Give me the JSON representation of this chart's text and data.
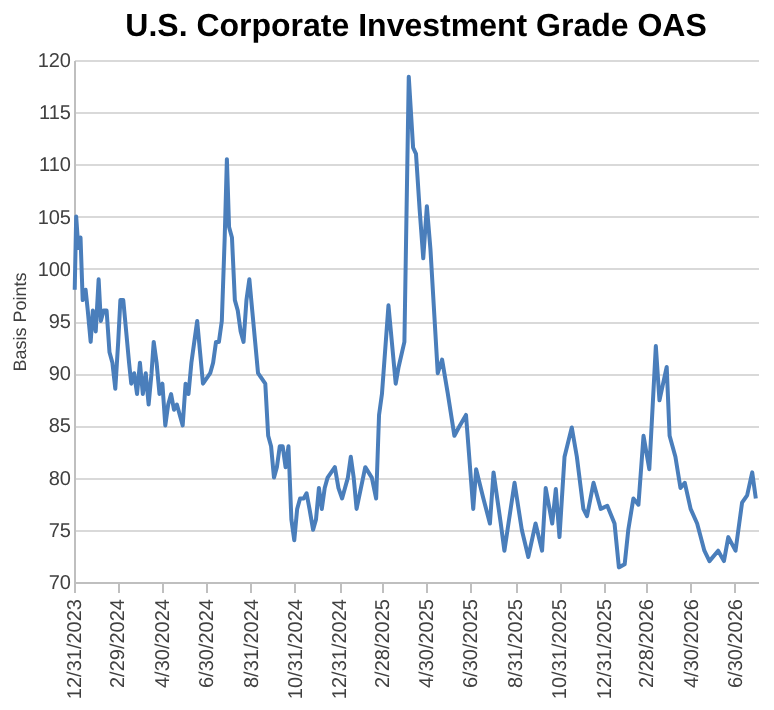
{
  "chart_data": {
    "type": "line",
    "title": "U.S. Corporate Investment Grade OAS",
    "ylabel": "Basis Points",
    "x": [
      "2024-01-01",
      "2024-01-03",
      "2024-01-06",
      "2024-01-09",
      "2024-01-12",
      "2024-01-16",
      "2024-01-19",
      "2024-01-23",
      "2024-01-26",
      "2024-01-30",
      "2024-02-03",
      "2024-02-06",
      "2024-02-10",
      "2024-02-14",
      "2024-02-18",
      "2024-02-22",
      "2024-02-26",
      "2024-03-01",
      "2024-03-04",
      "2024-03-08",
      "2024-03-12",
      "2024-03-16",
      "2024-03-19",
      "2024-03-23",
      "2024-03-27",
      "2024-03-31",
      "2024-04-04",
      "2024-04-08",
      "2024-04-12",
      "2024-04-16",
      "2024-04-19",
      "2024-04-23",
      "2024-04-27",
      "2024-05-01",
      "2024-05-05",
      "2024-05-09",
      "2024-05-13",
      "2024-05-17",
      "2024-05-21",
      "2024-05-25",
      "2024-05-29",
      "2024-06-02",
      "2024-06-06",
      "2024-06-10",
      "2024-06-14",
      "2024-06-18",
      "2024-06-22",
      "2024-06-26",
      "2024-07-01",
      "2024-07-06",
      "2024-07-10",
      "2024-07-14",
      "2024-07-18",
      "2024-07-22",
      "2024-07-26",
      "2024-07-29",
      "2024-08-01",
      "2024-08-05",
      "2024-08-09",
      "2024-08-13",
      "2024-08-17",
      "2024-08-21",
      "2024-08-25",
      "2024-08-29",
      "2024-09-02",
      "2024-09-06",
      "2024-09-10",
      "2024-09-15",
      "2024-09-20",
      "2024-09-24",
      "2024-09-28",
      "2024-10-02",
      "2024-10-06",
      "2024-10-10",
      "2024-10-14",
      "2024-10-18",
      "2024-10-22",
      "2024-10-26",
      "2024-10-30",
      "2024-11-03",
      "2024-11-07",
      "2024-11-12",
      "2024-11-16",
      "2024-11-20",
      "2024-11-25",
      "2024-11-29",
      "2024-12-03",
      "2024-12-07",
      "2024-12-11",
      "2024-12-15",
      "2024-12-20",
      "2024-12-25",
      "2024-12-30",
      "2025-01-04",
      "2025-01-08",
      "2025-01-12",
      "2025-01-16",
      "2025-01-20",
      "2025-01-24",
      "2025-02-05",
      "2025-02-14",
      "2025-02-20",
      "2025-02-24",
      "2025-02-28",
      "2025-03-09",
      "2025-03-19",
      "2025-03-23",
      "2025-03-31",
      "2025-04-06",
      "2025-04-12",
      "2025-04-16",
      "2025-04-21",
      "2025-04-26",
      "2025-05-01",
      "2025-05-06",
      "2025-05-16",
      "2025-05-22",
      "2025-05-30",
      "2025-06-08",
      "2025-06-14",
      "2025-06-24",
      "2025-07-04",
      "2025-07-08",
      "2025-07-18",
      "2025-07-27",
      "2025-08-01",
      "2025-08-11",
      "2025-08-16",
      "2025-08-30",
      "2025-09-09",
      "2025-09-18",
      "2025-09-28",
      "2025-10-07",
      "2025-10-12",
      "2025-10-21",
      "2025-10-26",
      "2025-10-31",
      "2025-11-07",
      "2025-11-17",
      "2025-11-24",
      "2025-12-03",
      "2025-12-08",
      "2025-12-17",
      "2025-12-27",
      "2026-01-05",
      "2026-01-15",
      "2026-01-21",
      "2026-01-29",
      "2026-02-03",
      "2026-02-10",
      "2026-02-17",
      "2026-02-24",
      "2026-03-04",
      "2026-03-13",
      "2026-03-18",
      "2026-03-28",
      "2026-04-01",
      "2026-04-09",
      "2026-04-16",
      "2026-04-22",
      "2026-04-30",
      "2026-05-09",
      "2026-05-19",
      "2026-05-26",
      "2026-06-07",
      "2026-06-15",
      "2026-06-21",
      "2026-07-01",
      "2026-07-10",
      "2026-07-17",
      "2026-07-24",
      "2026-07-29"
    ],
    "series": [
      {
        "color": "#4a7ebb",
        "values": [
          98,
          105,
          102,
          103,
          97,
          98,
          96,
          93,
          96,
          94,
          99,
          95,
          96,
          96,
          92,
          91,
          88.5,
          93,
          97,
          97,
          94,
          91,
          89,
          90,
          88,
          91,
          88,
          90,
          87,
          90,
          93,
          91,
          88,
          89,
          85,
          87,
          88,
          86.5,
          87,
          86,
          85,
          89,
          88,
          91,
          93,
          95,
          92,
          89,
          89.5,
          90,
          91,
          93,
          93,
          95,
          103,
          110.5,
          104,
          103,
          97,
          96,
          94,
          93,
          97,
          99,
          96,
          93,
          90,
          89.5,
          89,
          84,
          83,
          80,
          81,
          83,
          83,
          81,
          83,
          76,
          74,
          77,
          78,
          78,
          78.5,
          77,
          75,
          76,
          79,
          77,
          79,
          80,
          80.5,
          81,
          79,
          78,
          79,
          80,
          82,
          80,
          77,
          81,
          80,
          78,
          86,
          88,
          96.5,
          89,
          90.6,
          93,
          118.4,
          111.6,
          111,
          105.7,
          101,
          106,
          101.8,
          90,
          91.3,
          88,
          84,
          84.8,
          86,
          77,
          80.8,
          78,
          75.6,
          80.5,
          75.6,
          73,
          79.5,
          75,
          72.4,
          75.6,
          73,
          79,
          75.6,
          78.9,
          74.3,
          82,
          84.8,
          82,
          77,
          76.3,
          79.5,
          77,
          77.3,
          75.6,
          71.4,
          71.7,
          75,
          78,
          77.4,
          84,
          80.8,
          92.6,
          87.4,
          90.6,
          84,
          82,
          79,
          79.5,
          77,
          75.6,
          73,
          72,
          73,
          72,
          74.3,
          73,
          77.6,
          78.3,
          80.5,
          78
        ]
      }
    ],
    "xlim": [
      "2023-12-31",
      "2026-08-01"
    ],
    "xticks": [
      {
        "value": "2023-12-31",
        "label": "12/31/2023"
      },
      {
        "value": "2024-02-29",
        "label": "2/29/2024"
      },
      {
        "value": "2024-04-30",
        "label": "4/30/2024"
      },
      {
        "value": "2024-06-30",
        "label": "6/30/2024"
      },
      {
        "value": "2024-08-31",
        "label": "8/31/2024"
      },
      {
        "value": "2024-10-31",
        "label": "10/31/2024"
      },
      {
        "value": "2024-12-31",
        "label": "12/31/2024"
      },
      {
        "value": "2025-02-28",
        "label": "2/28/2025"
      },
      {
        "value": "2025-04-30",
        "label": "4/30/2025"
      },
      {
        "value": "2025-06-30",
        "label": "6/30/2025"
      },
      {
        "value": "2025-08-31",
        "label": "8/31/2025"
      },
      {
        "value": "2025-10-31",
        "label": "10/31/2025"
      },
      {
        "value": "2025-12-31",
        "label": "12/31/2025"
      },
      {
        "value": "2026-02-28",
        "label": "2/28/2026"
      },
      {
        "value": "2026-04-30",
        "label": "4/30/2026"
      },
      {
        "value": "2026-06-30",
        "label": "6/30/2026"
      }
    ],
    "ylim": [
      70,
      120
    ],
    "yticks": [
      70,
      75,
      80,
      85,
      90,
      95,
      100,
      105,
      110,
      115,
      120
    ],
    "grid": "y",
    "legend": false,
    "marker": "none",
    "line_style": "solid"
  }
}
